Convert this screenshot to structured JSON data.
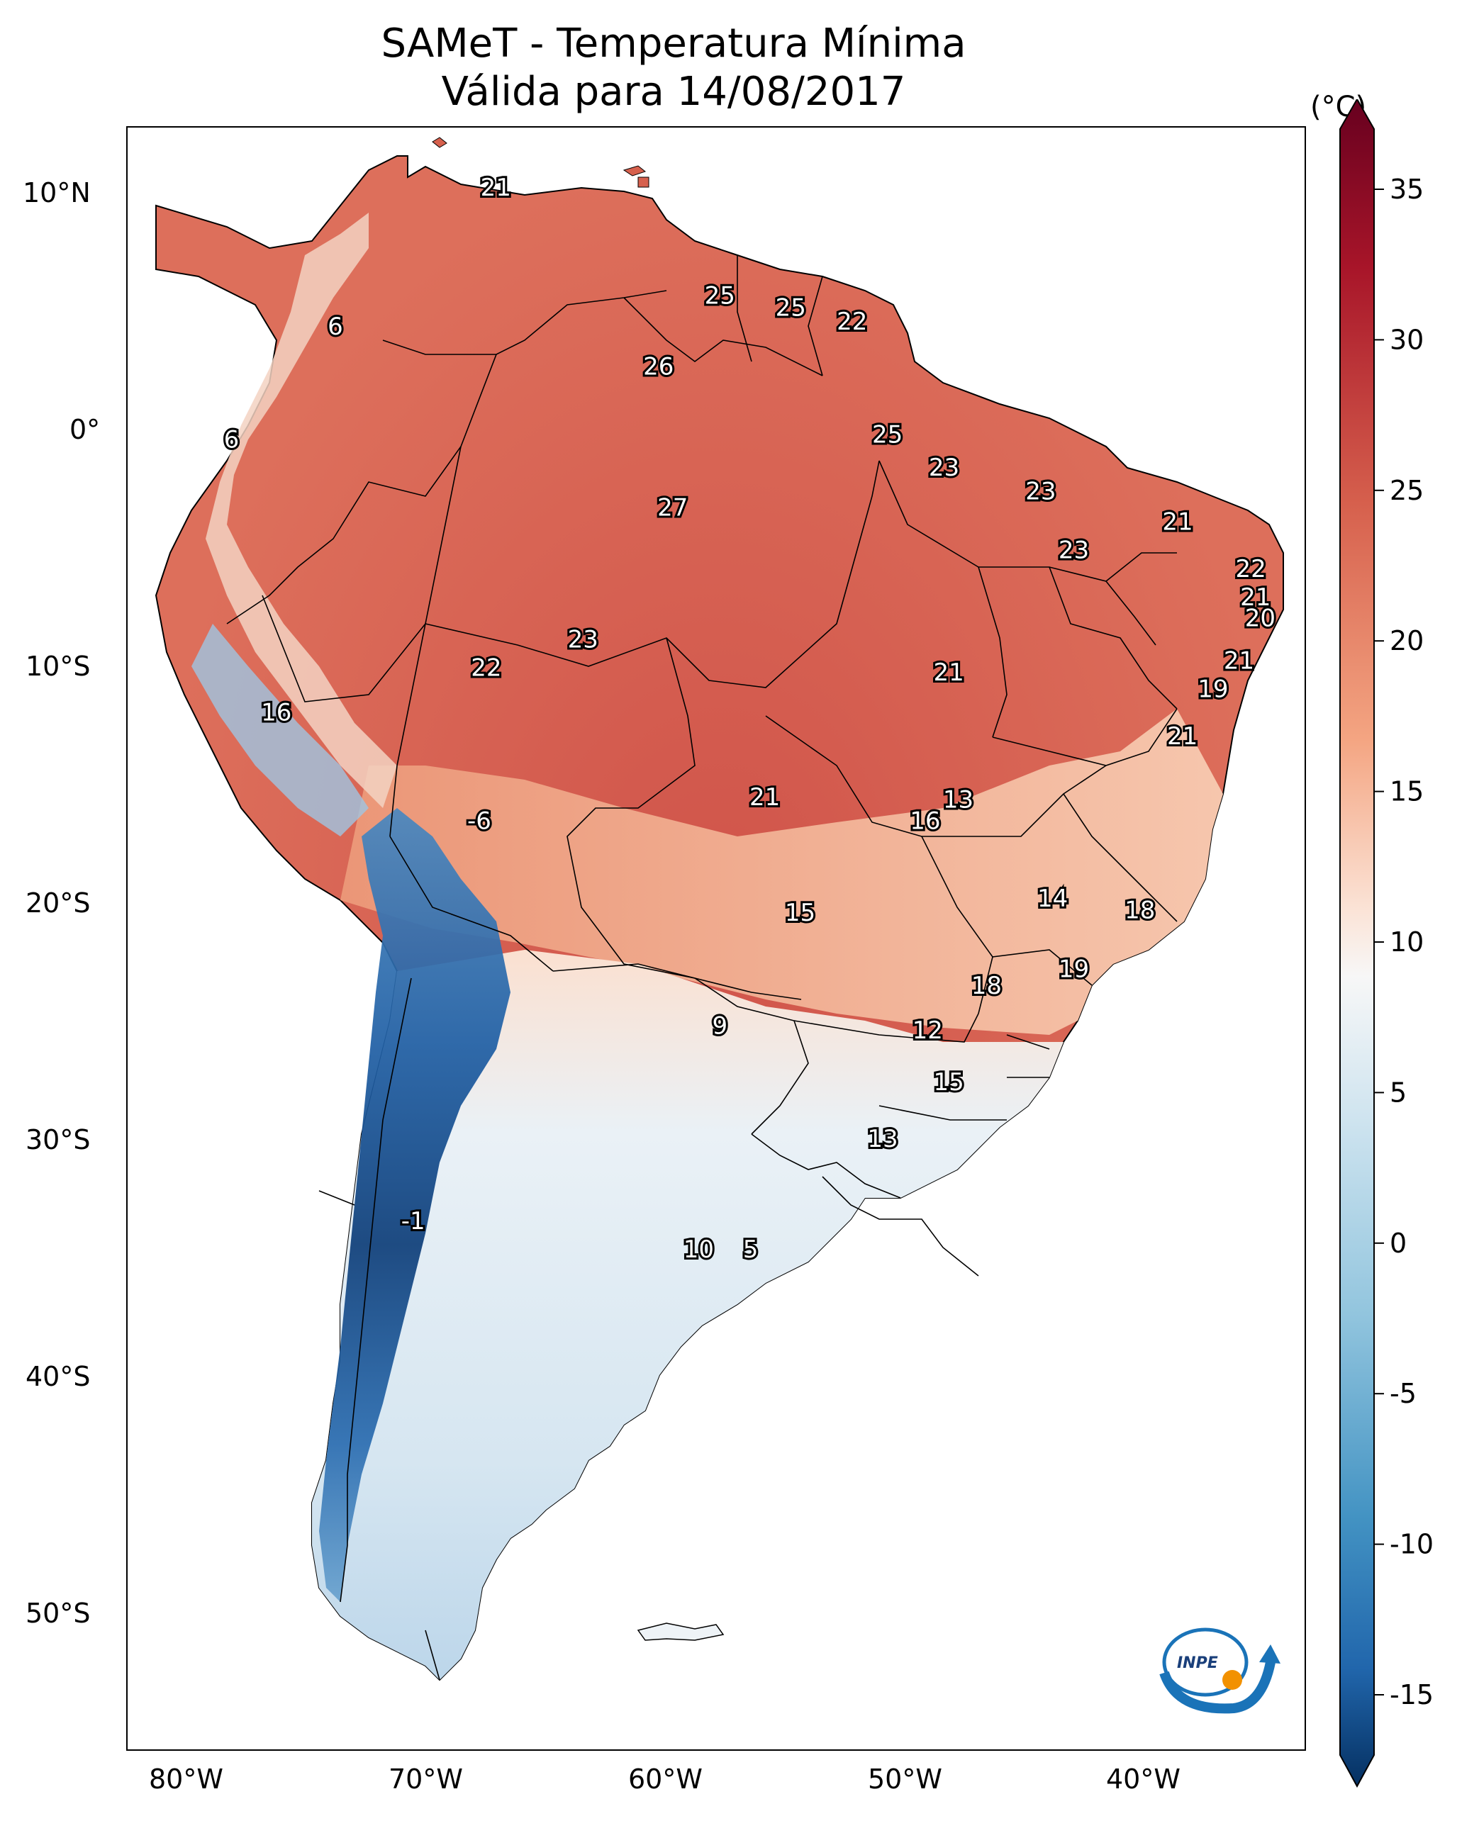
{
  "title": {
    "line1": "SAMeT - Temperatura Mínima",
    "line2": "Válida para 14/08/2017"
  },
  "map": {
    "lon_ticks": [
      "80°W",
      "70°W",
      "60°W",
      "50°W",
      "40°W"
    ],
    "lat_ticks": [
      "10°N",
      "0°",
      "10°S",
      "20°S",
      "30°S",
      "40°S",
      "50°S"
    ]
  },
  "colorbar": {
    "unit": "(°C)",
    "ticks": [
      "35",
      "30",
      "25",
      "20",
      "15",
      "10",
      "5",
      "0",
      "-5",
      "-10",
      "-15"
    ],
    "range": [
      -17,
      37
    ],
    "colors": {
      "max": "#67001f",
      "warm": "#d6604d",
      "mild": "#f4a582",
      "neutral": "#f7f7f7",
      "cool": "#92c5de",
      "cold": "#2166ac",
      "min": "#053061"
    }
  },
  "labels": [
    {
      "text": "21",
      "lon": -67.4,
      "lat": 10.4
    },
    {
      "text": "25",
      "lon": -57.9,
      "lat": 5.8
    },
    {
      "text": "25",
      "lon": -54.9,
      "lat": 5.3
    },
    {
      "text": "22",
      "lon": -52.3,
      "lat": 4.7
    },
    {
      "text": "6",
      "lon": -74.2,
      "lat": 4.5
    },
    {
      "text": "26",
      "lon": -60.5,
      "lat": 2.8
    },
    {
      "text": "6",
      "lon": -78.6,
      "lat": -0.3
    },
    {
      "text": "25",
      "lon": -50.8,
      "lat": -0.1
    },
    {
      "text": "23",
      "lon": -48.4,
      "lat": -1.5
    },
    {
      "text": "23",
      "lon": -44.3,
      "lat": -2.5
    },
    {
      "text": "27",
      "lon": -59.9,
      "lat": -3.2
    },
    {
      "text": "21",
      "lon": -38.5,
      "lat": -3.8
    },
    {
      "text": "23",
      "lon": -42.9,
      "lat": -5.0
    },
    {
      "text": "22",
      "lon": -35.4,
      "lat": -5.8
    },
    {
      "text": "21",
      "lon": -35.2,
      "lat": -7.0
    },
    {
      "text": "20",
      "lon": -35.0,
      "lat": -7.9
    },
    {
      "text": "23",
      "lon": -63.7,
      "lat": -8.8
    },
    {
      "text": "21",
      "lon": -35.9,
      "lat": -9.7
    },
    {
      "text": "22",
      "lon": -67.8,
      "lat": -10.0
    },
    {
      "text": "21",
      "lon": -48.2,
      "lat": -10.2
    },
    {
      "text": "19",
      "lon": -37.0,
      "lat": -10.9
    },
    {
      "text": "16",
      "lon": -76.7,
      "lat": -11.9
    },
    {
      "text": "21",
      "lon": -38.3,
      "lat": -12.9
    },
    {
      "text": "21",
      "lon": -56.0,
      "lat": -15.5
    },
    {
      "text": "13",
      "lon": -47.8,
      "lat": -15.6
    },
    {
      "text": "-6",
      "lon": -68.1,
      "lat": -16.5
    },
    {
      "text": "16",
      "lon": -49.2,
      "lat": -16.5
    },
    {
      "text": "14",
      "lon": -43.8,
      "lat": -19.8
    },
    {
      "text": "18",
      "lon": -40.1,
      "lat": -20.3
    },
    {
      "text": "15",
      "lon": -54.5,
      "lat": -20.4
    },
    {
      "text": "19",
      "lon": -42.9,
      "lat": -22.8
    },
    {
      "text": "18",
      "lon": -46.6,
      "lat": -23.5
    },
    {
      "text": "9",
      "lon": -57.9,
      "lat": -25.2
    },
    {
      "text": "12",
      "lon": -49.1,
      "lat": -25.4
    },
    {
      "text": "15",
      "lon": -48.2,
      "lat": -27.6
    },
    {
      "text": "13",
      "lon": -51.0,
      "lat": -30.0
    },
    {
      "text": "-1",
      "lon": -70.9,
      "lat": -33.5
    },
    {
      "text": "10",
      "lon": -58.8,
      "lat": -34.7
    },
    {
      "text": "5",
      "lon": -56.6,
      "lat": -34.7
    }
  ]
}
